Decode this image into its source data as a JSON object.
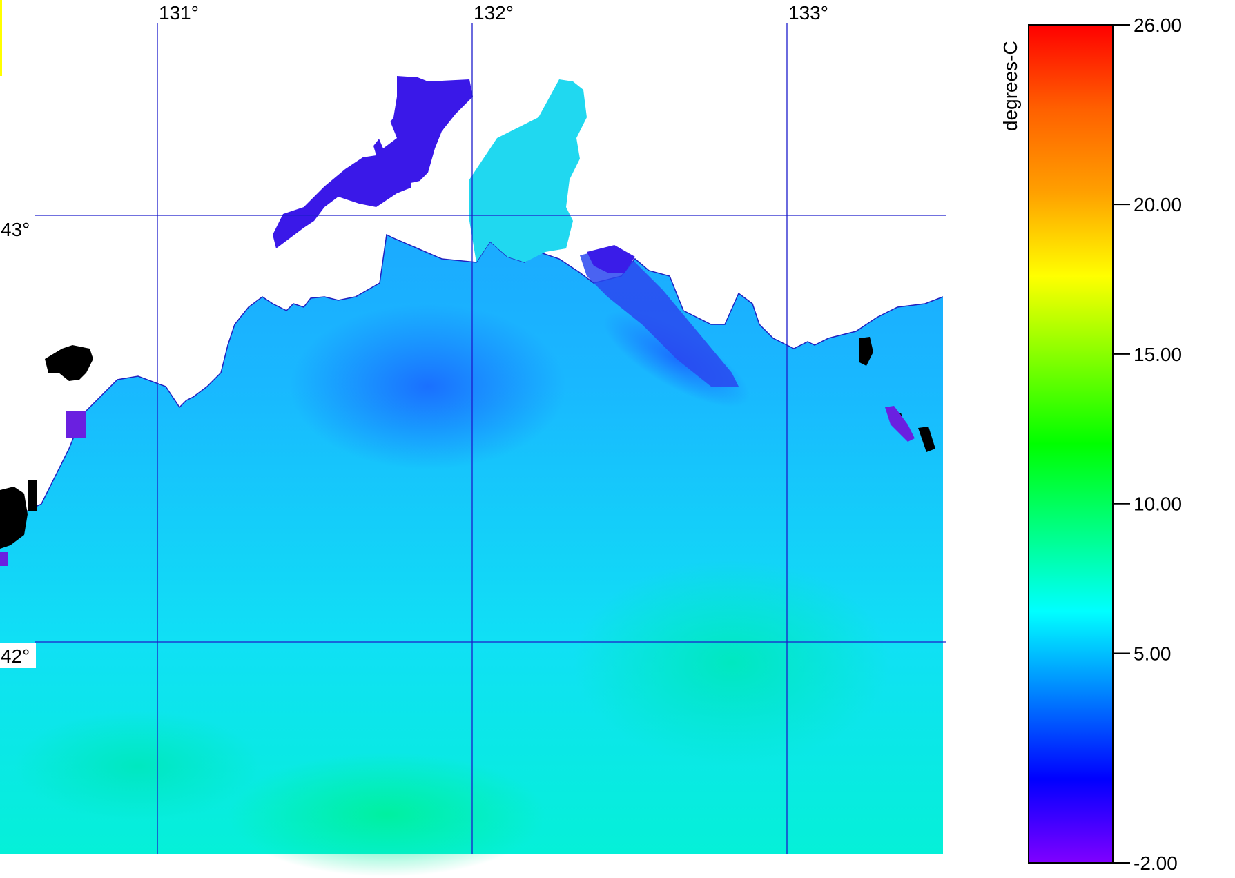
{
  "map": {
    "longitude_labels": [
      "131°",
      "132°",
      "133°"
    ],
    "latitude_labels": [
      "43°",
      "42°"
    ]
  },
  "colorbar": {
    "unit_label": "degrees-C",
    "min": -2.0,
    "max": 26.0,
    "tick_labels": [
      "26.00",
      "20.00",
      "15.00",
      "10.00",
      "5.00",
      "-2.00"
    ],
    "tick_values": [
      26,
      20,
      15,
      10,
      5,
      -2
    ],
    "gradient_colors": [
      "#8000ff",
      "#0000ff",
      "#0080ff",
      "#00ffff",
      "#00ff80",
      "#00ff00",
      "#80ff00",
      "#ffff00",
      "#ffa000",
      "#ff6000",
      "#ff0000"
    ]
  },
  "colors": {
    "grid": "#1c1ccc",
    "land": "#ffffff",
    "no_data": "#000000"
  }
}
